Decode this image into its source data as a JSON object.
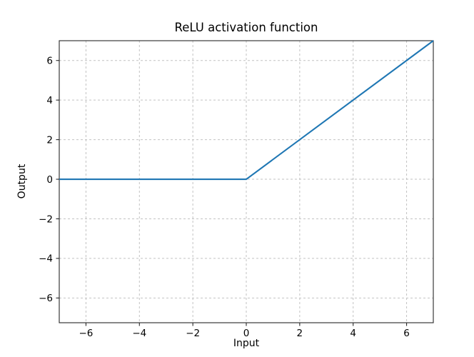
{
  "chart_data": {
    "type": "line",
    "title": "ReLU activation function",
    "xlabel": "Input",
    "ylabel": "Output",
    "xlim": [
      -7,
      7
    ],
    "ylim": [
      -7.25,
      7
    ],
    "grid": true,
    "grid_linestyle": "dashed",
    "grid_color": "#c2c2c2",
    "legend": "none",
    "xticks": {
      "values": [
        -6,
        -4,
        -2,
        0,
        2,
        4,
        6
      ],
      "labels": [
        "−6",
        "−4",
        "−2",
        "0",
        "2",
        "4",
        "6"
      ]
    },
    "yticks": {
      "values": [
        -6,
        -4,
        -2,
        0,
        2,
        4,
        6
      ],
      "labels": [
        "−6",
        "−4",
        "−2",
        "0",
        "2",
        "4",
        "6"
      ]
    },
    "series": [
      {
        "name": "relu",
        "x": [
          -7,
          0,
          7
        ],
        "y": [
          0,
          0,
          7
        ],
        "color": "#1f77b4",
        "linewidth": 2.1
      }
    ]
  }
}
